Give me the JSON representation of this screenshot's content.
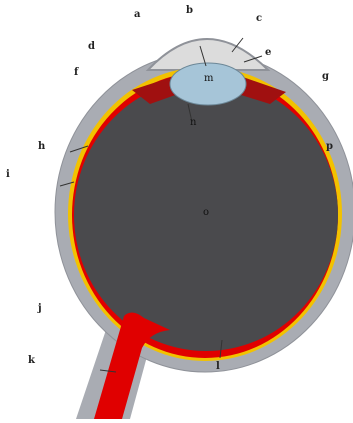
{
  "diagram": {
    "labels": {
      "a": "a",
      "b": "b",
      "c": "c",
      "d": "d",
      "e": "e",
      "f": "f",
      "g": "g",
      "h": "h",
      "i": "i",
      "j": "j",
      "k": "k",
      "l": "l",
      "m": "m",
      "n": "n",
      "o": "o",
      "p": "p"
    },
    "colors": {
      "sclera": "#a9acb3",
      "choroid": "#f2c200",
      "retina": "#e00000",
      "vitreous": "#4a4a4d",
      "lens": "#a6c5d8",
      "cornea": "#dcdcdc",
      "iris": "#a01010"
    }
  }
}
